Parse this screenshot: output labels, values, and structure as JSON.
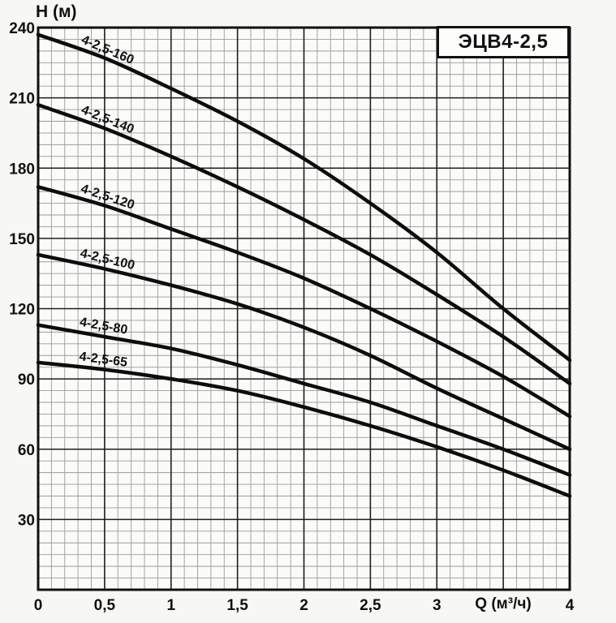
{
  "page": {
    "bg": "#f7f7f5"
  },
  "colors": {
    "plot_bg": "#fbfbf9",
    "grid_minor": "#9b9b9b",
    "grid_major": "#1e1e1e",
    "axis": "#111111",
    "curve": "#0d0d0d",
    "text": "#111111",
    "title_box_bg": "#fdfdfc"
  },
  "chart_data": {
    "type": "line",
    "title": "ЭЦВ4-2,5",
    "xlabel": "Q (м³/ч)",
    "ylabel": "Н (м)",
    "xlim": [
      0,
      4
    ],
    "ylim": [
      0,
      240
    ],
    "x_major_step": 0.5,
    "x_minor_step": 0.1,
    "y_major_step": 30,
    "y_minor_step": 5,
    "grid": "on",
    "legend": "inline-labels-on-curves",
    "xlabel_at": 3.5,
    "x_ticks": [
      {
        "v": 0,
        "label": "0"
      },
      {
        "v": 0.5,
        "label": "0,5"
      },
      {
        "v": 1,
        "label": "1"
      },
      {
        "v": 1.5,
        "label": "1,5"
      },
      {
        "v": 2,
        "label": "2"
      },
      {
        "v": 2.5,
        "label": "2,5"
      },
      {
        "v": 3,
        "label": "3"
      },
      {
        "v": 4,
        "label": "4"
      }
    ],
    "y_ticks": [
      {
        "v": 240,
        "label": "240"
      },
      {
        "v": 210,
        "label": "210"
      },
      {
        "v": 180,
        "label": "180"
      },
      {
        "v": 150,
        "label": "150"
      },
      {
        "v": 120,
        "label": "120"
      },
      {
        "v": 90,
        "label": "90"
      },
      {
        "v": 60,
        "label": "60"
      },
      {
        "v": 30,
        "label": "30"
      }
    ],
    "x": [
      0,
      0.5,
      1,
      1.5,
      2,
      2.5,
      3,
      3.5,
      4
    ],
    "series": [
      {
        "name": "4-2,5-160",
        "values": [
          237,
          227,
          214,
          200,
          184,
          165,
          144,
          120,
          98
        ],
        "label_q": 0.3
      },
      {
        "name": "4-2,5-140",
        "values": [
          207,
          197,
          185,
          172,
          158,
          143,
          126,
          108,
          88
        ],
        "label_q": 0.3
      },
      {
        "name": "4-2,5-120",
        "values": [
          172,
          164,
          154,
          144,
          133,
          120,
          106,
          91,
          74
        ],
        "label_q": 0.3
      },
      {
        "name": "4-2,5-100",
        "values": [
          143,
          137,
          130,
          122,
          112,
          100,
          86,
          73,
          60
        ],
        "label_q": 0.3
      },
      {
        "name": "4-2,5-80",
        "values": [
          113,
          108,
          103,
          96,
          88,
          80,
          70,
          60,
          49
        ],
        "label_q": 0.3
      },
      {
        "name": "4-2,5-65",
        "values": [
          97,
          94,
          90,
          85,
          78,
          70,
          61,
          51,
          40
        ],
        "label_q": 0.3
      }
    ]
  }
}
